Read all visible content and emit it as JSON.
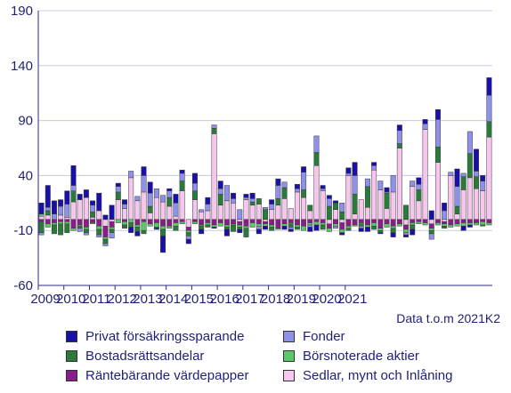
{
  "chart_data": {
    "type": "bar",
    "stacked": true,
    "grid": "horizontal",
    "ylim": [
      -60,
      190
    ],
    "yticks": [
      190,
      140,
      90,
      40,
      -10,
      -60
    ],
    "xticks": [
      "2009",
      "2010",
      "2011",
      "2012",
      "2013",
      "2014",
      "2015",
      "2016",
      "2017",
      "2018",
      "2019",
      "2020",
      "2021"
    ],
    "note": "Data t.o.m 2021K2",
    "legend_position": "bottom",
    "series": [
      {
        "name": "Sedlar, mynt och Inlåning",
        "color": "#f7c6ee",
        "values": [
          3,
          4,
          0,
          4,
          2,
          16,
          18,
          20,
          2,
          8,
          -6,
          -2,
          18,
          10,
          38,
          17,
          25,
          6,
          20,
          16,
          12,
          3,
          26,
          -7,
          18,
          7,
          8,
          78,
          13,
          17,
          15,
          -2,
          18,
          13,
          14,
          -2,
          9,
          13,
          19,
          10,
          25,
          20,
          8,
          49,
          26,
          -4,
          9,
          -3,
          40,
          5,
          18,
          11,
          45,
          27,
          10,
          25,
          65,
          -5,
          30,
          17,
          82,
          -4,
          52,
          -2,
          40,
          5,
          27,
          38,
          28,
          26,
          75
        ]
      },
      {
        "name": "Räntebärande värdepapper",
        "color": "#8b1d8b",
        "values": [
          -2,
          -4,
          -3,
          -2,
          -2,
          -8,
          -5,
          -7,
          -3,
          -6,
          -10,
          -5,
          0,
          -2,
          0,
          -5,
          -2,
          -4,
          -3,
          -6,
          -6,
          -3,
          -2,
          -3,
          -2,
          -5,
          -3,
          -5,
          -3,
          -5,
          -4,
          -3,
          -6,
          -3,
          -4,
          -2,
          -5,
          -8,
          -4,
          -3,
          -5,
          -6,
          -3,
          -2,
          -3,
          -4,
          -4,
          -6,
          -6,
          -5,
          -3,
          -5,
          -3,
          -8,
          -4,
          -6,
          -4,
          -4,
          -3,
          -2,
          -3,
          -4,
          -3,
          -2,
          -5,
          -4,
          -3,
          -3,
          -3,
          -2,
          -3
        ]
      },
      {
        "name": "Börsnoterade aktier",
        "color": "#5cc86a",
        "values": [
          2,
          -3,
          -2,
          -2,
          -2,
          -2,
          -1,
          -2,
          -1,
          -3,
          -2,
          -2,
          -3,
          -3,
          -3,
          -2,
          -8,
          -2,
          -4,
          -3,
          -2,
          -3,
          -2,
          -2,
          -2,
          -1,
          -2,
          -2,
          -3,
          -2,
          -1,
          -2,
          -2,
          -4,
          -2,
          -2,
          -2,
          -1,
          -2,
          -1,
          -2,
          -4,
          -2,
          -3,
          -2,
          -3,
          -2,
          -3,
          -2,
          -1,
          -1,
          -2,
          -3,
          -2,
          -3,
          -2,
          -2,
          -3,
          -2,
          -2,
          -2,
          -2,
          -2,
          -2,
          -2,
          -2,
          -3,
          -2,
          -2,
          -3,
          -2
        ]
      },
      {
        "name": "Bostadsrättsandelar",
        "color": "#2a7a3a",
        "values": [
          -10,
          4,
          -8,
          -10,
          -8,
          10,
          -2,
          -3,
          5,
          -5,
          -4,
          -3,
          7,
          -3,
          -4,
          -4,
          -3,
          6,
          -1,
          -6,
          8,
          -4,
          9,
          -3,
          8,
          -3,
          -2,
          5,
          10,
          -2,
          -6,
          -2,
          -8,
          3,
          5,
          9,
          -3,
          6,
          10,
          -3,
          -2,
          7,
          5,
          12,
          -4,
          12,
          6,
          7,
          -2,
          18,
          -2,
          19,
          -3,
          -2,
          14,
          -4,
          4,
          13,
          -4,
          10,
          0,
          -3,
          14,
          -2,
          0,
          7,
          12,
          22,
          11,
          -1,
          14
        ]
      },
      {
        "name": "Fonder",
        "color": "#8f90ea",
        "values": [
          -2,
          3,
          5,
          8,
          12,
          5,
          -3,
          -2,
          6,
          -2,
          -2,
          -5,
          5,
          4,
          6,
          4,
          15,
          12,
          8,
          6,
          6,
          12,
          7,
          -3,
          7,
          2,
          6,
          3,
          5,
          14,
          4,
          9,
          2,
          3,
          -3,
          2,
          5,
          12,
          5,
          -2,
          3,
          16,
          -2,
          15,
          2,
          7,
          -2,
          8,
          2,
          17,
          -2,
          7,
          4,
          8,
          1,
          15,
          12,
          -2,
          5,
          5,
          5,
          -5,
          25,
          8,
          3,
          18,
          3,
          20,
          5,
          9,
          24
        ]
      },
      {
        "name": "Privat försäkringssparande",
        "color": "#1a0fa8",
        "values": [
          10,
          20,
          12,
          6,
          12,
          18,
          5,
          7,
          4,
          16,
          4,
          13,
          3,
          4,
          -5,
          -4,
          8,
          10,
          -1,
          -15,
          2,
          8,
          3,
          -4,
          9,
          -4,
          6,
          -1,
          7,
          -6,
          5,
          -3,
          3,
          5,
          -4,
          -3,
          4,
          6,
          -3,
          -2,
          4,
          5,
          -4,
          -5,
          3,
          3,
          2,
          -2,
          5,
          12,
          -3,
          -4,
          3,
          -1,
          4,
          -4,
          5,
          -2,
          -5,
          6,
          4,
          8,
          9,
          7,
          0,
          16,
          -4,
          -2,
          20,
          5,
          16
        ]
      }
    ]
  },
  "legend": {
    "items": [
      {
        "label": "Privat försäkringssparande",
        "color": "#1a0fa8"
      },
      {
        "label": "Fonder",
        "color": "#8f90ea"
      },
      {
        "label": "Bostadsrättsandelar",
        "color": "#2a7a3a"
      },
      {
        "label": "Börsnoterade aktier",
        "color": "#5cc86a"
      },
      {
        "label": "Räntebärande värdepapper",
        "color": "#8b1d8b"
      },
      {
        "label": "Sedlar, mynt och Inlåning",
        "color": "#f7c6ee"
      }
    ]
  }
}
